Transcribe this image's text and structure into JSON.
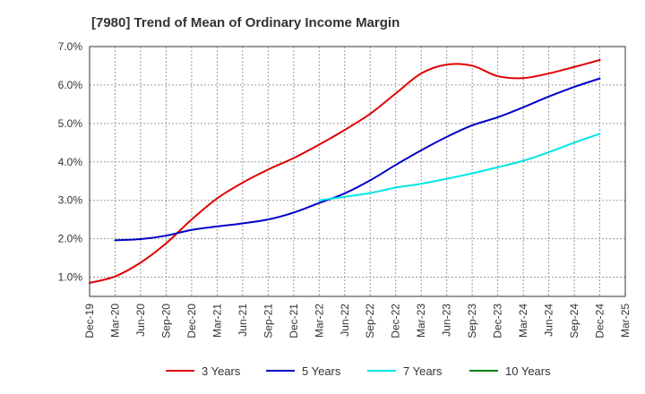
{
  "chart_data": {
    "type": "line",
    "title": "[7980]  Trend of Mean of Ordinary Income Margin",
    "xlabel": "",
    "ylabel": "",
    "y_unit": "%",
    "ylim": [
      0.5,
      7.0
    ],
    "y_ticks": [
      1.0,
      2.0,
      3.0,
      4.0,
      5.0,
      6.0,
      7.0
    ],
    "y_tick_labels": [
      "1.0%",
      "2.0%",
      "3.0%",
      "4.0%",
      "5.0%",
      "6.0%",
      "7.0%"
    ],
    "x_tick_labels": [
      "Dec-19",
      "Mar-20",
      "Jun-20",
      "Sep-20",
      "Dec-20",
      "Mar-21",
      "Jun-21",
      "Sep-21",
      "Dec-21",
      "Mar-22",
      "Jun-22",
      "Sep-22",
      "Dec-22",
      "Mar-23",
      "Jun-23",
      "Sep-23",
      "Dec-23",
      "Mar-24",
      "Jun-24",
      "Sep-24",
      "Dec-24",
      "Mar-25"
    ],
    "grid": true,
    "legend_position": "bottom",
    "series": [
      {
        "name": "3 Years",
        "color": "#e00000",
        "x": [
          "Dec-19",
          "Mar-20",
          "Jun-20",
          "Sep-20",
          "Dec-20",
          "Mar-21",
          "Jun-21",
          "Sep-21",
          "Dec-21",
          "Mar-22",
          "Jun-22",
          "Sep-22",
          "Dec-22",
          "Mar-23",
          "Jun-23",
          "Sep-23",
          "Dec-23",
          "Mar-24",
          "Jun-24",
          "Sep-24",
          "Dec-24"
        ],
        "values": [
          0.85,
          1.02,
          1.38,
          1.88,
          2.5,
          3.05,
          3.46,
          3.8,
          4.1,
          4.45,
          4.83,
          5.25,
          5.78,
          6.3,
          6.53,
          6.5,
          6.23,
          6.18,
          6.3,
          6.47,
          6.65
        ]
      },
      {
        "name": "5 Years",
        "color": "#0000c8",
        "x": [
          "Mar-20",
          "Jun-20",
          "Sep-20",
          "Dec-20",
          "Mar-21",
          "Jun-21",
          "Sep-21",
          "Dec-21",
          "Mar-22",
          "Jun-22",
          "Sep-22",
          "Dec-22",
          "Mar-23",
          "Jun-23",
          "Sep-23",
          "Dec-23",
          "Mar-24",
          "Jun-24",
          "Sep-24",
          "Dec-24"
        ],
        "values": [
          1.96,
          1.99,
          2.08,
          2.23,
          2.32,
          2.4,
          2.5,
          2.68,
          2.93,
          3.18,
          3.52,
          3.92,
          4.3,
          4.65,
          4.95,
          5.16,
          5.42,
          5.7,
          5.95,
          6.17
        ]
      },
      {
        "name": "7 Years",
        "color": "#00e5e5",
        "x": [
          "Mar-22",
          "Jun-22",
          "Sep-22",
          "Dec-22",
          "Mar-23",
          "Jun-23",
          "Sep-23",
          "Dec-23",
          "Mar-24",
          "Jun-24",
          "Sep-24",
          "Dec-24"
        ],
        "values": [
          3.0,
          3.09,
          3.19,
          3.33,
          3.43,
          3.56,
          3.7,
          3.86,
          4.03,
          4.25,
          4.5,
          4.73
        ]
      },
      {
        "name": "10 Years",
        "color": "#008000",
        "x": [],
        "values": []
      }
    ]
  }
}
